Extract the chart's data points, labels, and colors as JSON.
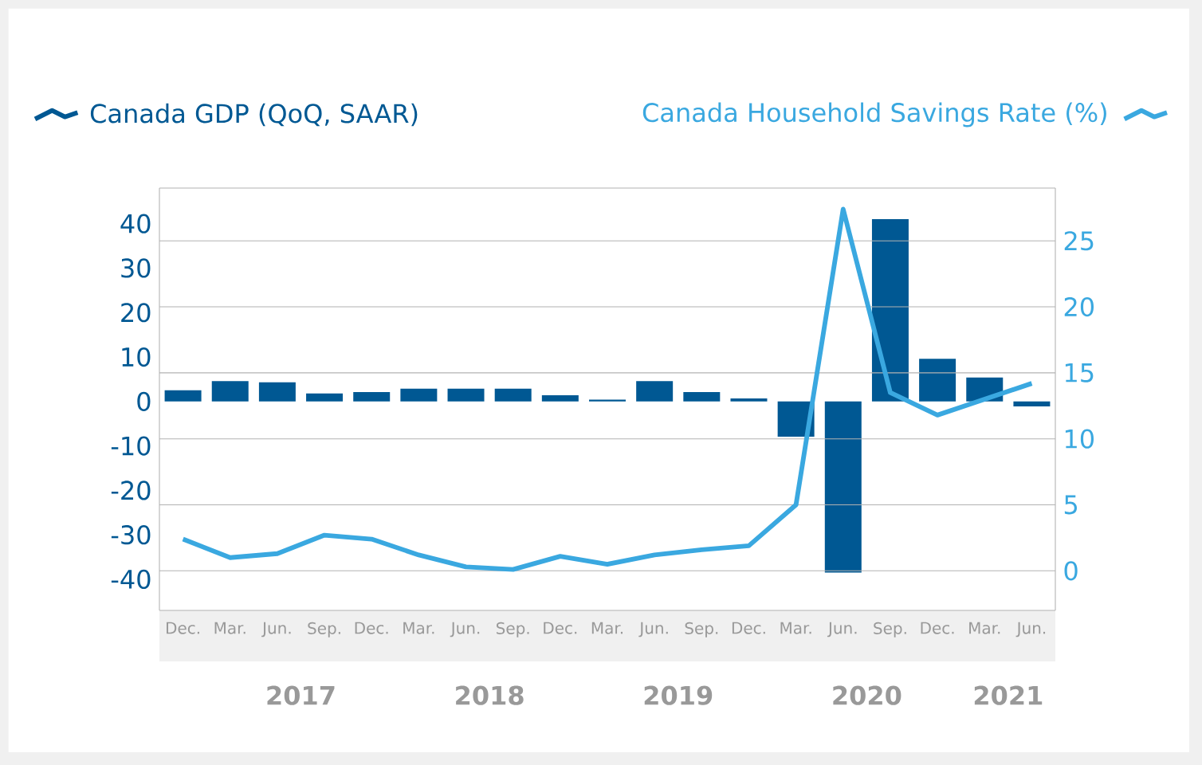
{
  "chart_data": {
    "type": "bar",
    "categories": [
      "Dec.",
      "Mar.",
      "Jun.",
      "Sep.",
      "Dec.",
      "Mar.",
      "Jun.",
      "Sep.",
      "Dec.",
      "Mar.",
      "Jun.",
      "Sep.",
      "Dec.",
      "Mar.",
      "Jun.",
      "Sep.",
      "Dec.",
      "Mar.",
      "Jun."
    ],
    "series": [
      {
        "name": "Canada GDP (QoQ, SAAR)",
        "color": "#005893",
        "values": [
          2.5,
          4.6,
          4.3,
          1.8,
          2.1,
          2.9,
          2.9,
          2.9,
          1.4,
          0.4,
          4.6,
          2.1,
          0.7,
          -7.9,
          -38.5,
          41,
          9.6,
          5.4,
          -1.1
        ]
      },
      {
        "name": "Canada Household Savings Rate (%)",
        "type": "line",
        "axis": "y2",
        "color": "#3aa8e0",
        "values": [
          2.4,
          1.0,
          1.3,
          2.7,
          2.4,
          1.2,
          0.3,
          0.1,
          1.1,
          0.5,
          1.2,
          1.6,
          1.9,
          5.0,
          27.4,
          13.5,
          11.8,
          13.0,
          14.2
        ]
      }
    ],
    "ylim": [
      -47,
      48
    ],
    "yticks": [
      -40,
      -30,
      -20,
      -10,
      0,
      10,
      20,
      30,
      40
    ],
    "y2lim": [
      -3,
      29
    ],
    "y2ticks": [
      0,
      5,
      10,
      15,
      20,
      25
    ],
    "grid": "y",
    "legend": "top",
    "annotations": [
      "2017",
      "2018",
      "2019",
      "2020",
      "2021"
    ]
  }
}
